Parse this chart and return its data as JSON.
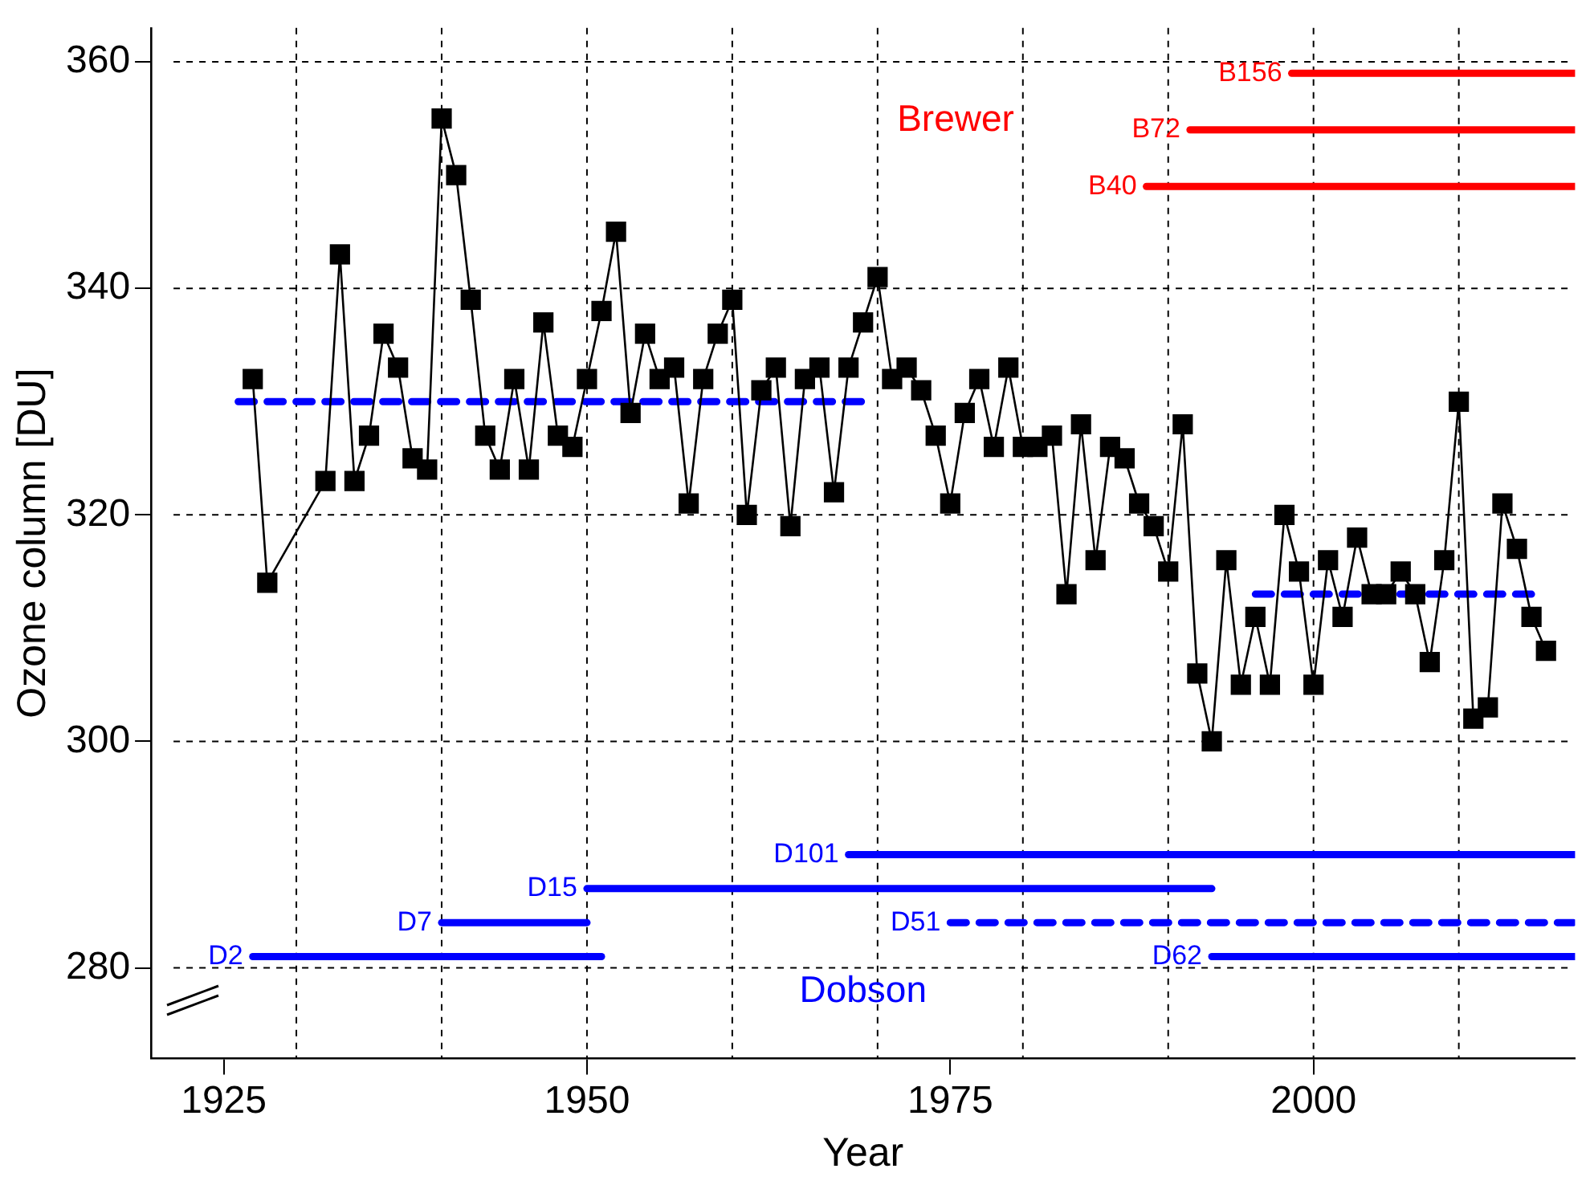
{
  "chart_data": {
    "type": "line",
    "xlabel": "Year",
    "ylabel": "Ozone column [DU]",
    "xlim": [
      1920,
      2018
    ],
    "ylim": [
      272,
      363
    ],
    "xticks": [
      1925,
      1950,
      1975,
      2000
    ],
    "yticks": [
      280,
      300,
      320,
      340,
      360
    ],
    "grid": "y",
    "legend": false,
    "x": [
      1927,
      1928,
      1929,
      1930,
      1931,
      1932,
      1933,
      1934,
      1935,
      1936,
      1937,
      1938,
      1939,
      1940,
      1941,
      1942,
      1943,
      1944,
      1945,
      1946,
      1947,
      1948,
      1949,
      1950,
      1951,
      1952,
      1953,
      1954,
      1955,
      1956,
      1957,
      1958,
      1959,
      1960,
      1961,
      1962,
      1963,
      1964,
      1965,
      1966,
      1967,
      1968,
      1969,
      1970,
      1971,
      1972,
      1973,
      1974,
      1975,
      1976,
      1977,
      1978,
      1979,
      1980,
      1981,
      1982,
      1983,
      1984,
      1985,
      1986,
      1987,
      1988,
      1989,
      1990,
      1991,
      1992,
      1993,
      1994,
      1995,
      1996,
      1997,
      1998,
      1999,
      2000,
      2001,
      2002,
      2003,
      2004,
      2005,
      2006,
      2007,
      2008,
      2009,
      2010,
      2011,
      2012,
      2013,
      2014,
      2015,
      2016
    ],
    "series": [
      {
        "color": "#000000",
        "marker": "square",
        "line_style": "solid",
        "values": [
          332,
          314,
          null,
          null,
          null,
          323,
          343,
          323,
          327,
          336,
          333,
          325,
          324,
          355,
          350,
          339,
          327,
          324,
          332,
          324,
          337,
          327,
          326,
          332,
          338,
          345,
          329,
          336,
          332,
          333,
          321,
          332,
          336,
          339,
          320,
          331,
          333,
          319,
          332,
          333,
          322,
          333,
          337,
          341,
          332,
          333,
          331,
          327,
          321,
          329,
          332,
          326,
          333,
          326,
          326,
          327,
          313,
          328,
          316,
          326,
          325,
          321,
          319,
          315,
          328,
          306,
          300,
          316,
          305,
          311,
          305,
          320,
          315,
          305,
          316,
          311,
          318,
          313,
          313,
          315,
          313,
          307,
          316,
          330,
          302,
          303,
          321,
          317,
          311,
          308
        ]
      },
      {
        "color": "#0000ff",
        "line_style": "dashed",
        "x": [
          1926,
          1969
        ],
        "values": [
          330,
          330
        ]
      },
      {
        "color": "#0000ff",
        "line_style": "dashed",
        "x": [
          1996,
          2015
        ],
        "values": [
          313,
          313
        ]
      },
      {
        "name": "D2",
        "color": "#0000ff",
        "line_style": "solid",
        "x": [
          1927,
          1951
        ],
        "values": [
          281,
          281
        ]
      },
      {
        "name": "D7",
        "color": "#0000ff",
        "line_style": "solid",
        "x": [
          1940,
          1950
        ],
        "values": [
          284,
          284
        ]
      },
      {
        "name": "D15",
        "color": "#0000ff",
        "line_style": "solid",
        "x": [
          1950,
          1993
        ],
        "values": [
          287,
          287
        ]
      },
      {
        "name": "D101",
        "color": "#0000ff",
        "line_style": "solid",
        "x": [
          1968,
          2018
        ],
        "values": [
          290,
          290
        ]
      },
      {
        "name": "D51",
        "color": "#0000ff",
        "line_style": "dashed",
        "x": [
          1975,
          2018
        ],
        "values": [
          284,
          284
        ]
      },
      {
        "name": "D62",
        "color": "#0000ff",
        "line_style": "solid",
        "x": [
          1993,
          2018
        ],
        "values": [
          281,
          281
        ]
      },
      {
        "name": "B156",
        "color": "#ff0000",
        "line_style": "solid",
        "x": [
          1998.5,
          2018
        ],
        "values": [
          359,
          359
        ]
      },
      {
        "name": "B72",
        "color": "#ff0000",
        "line_style": "solid",
        "x": [
          1991.5,
          2018
        ],
        "values": [
          354,
          354
        ]
      },
      {
        "name": "B40",
        "color": "#ff0000",
        "line_style": "solid",
        "x": [
          1988.5,
          2018
        ],
        "values": [
          349,
          349
        ]
      }
    ],
    "ref_lines": [
      {
        "axis": "x",
        "value": 1930,
        "color": "#000000",
        "line_style": "dashed"
      },
      {
        "axis": "x",
        "value": 1940,
        "color": "#000000",
        "line_style": "dashed"
      },
      {
        "axis": "x",
        "value": 1950,
        "color": "#000000",
        "line_style": "dashed"
      },
      {
        "axis": "x",
        "value": 1960,
        "color": "#000000",
        "line_style": "dashed"
      },
      {
        "axis": "x",
        "value": 1970,
        "color": "#000000",
        "line_style": "dashed"
      },
      {
        "axis": "x",
        "value": 1980,
        "color": "#000000",
        "line_style": "dashed"
      },
      {
        "axis": "x",
        "value": 1990,
        "color": "#000000",
        "line_style": "dashed"
      },
      {
        "axis": "x",
        "value": 2000,
        "color": "#000000",
        "line_style": "dashed"
      },
      {
        "axis": "x",
        "value": 2010,
        "color": "#000000",
        "line_style": "dashed"
      }
    ],
    "annotations": [
      "Dobson",
      "Brewer"
    ]
  }
}
